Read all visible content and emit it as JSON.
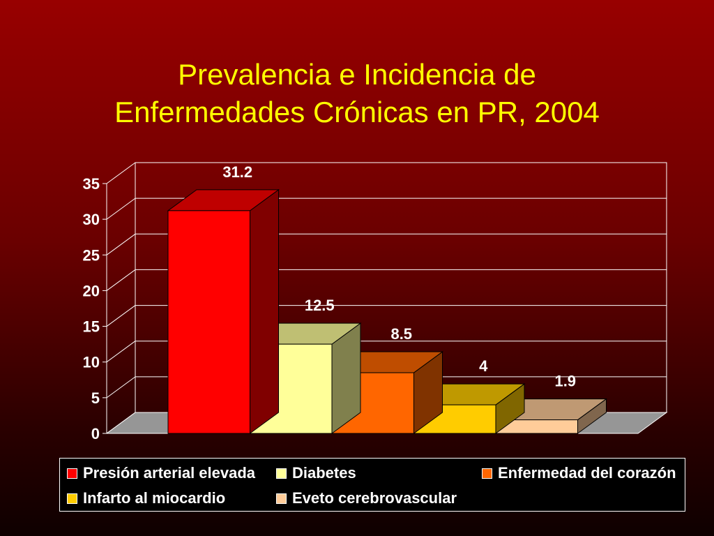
{
  "slide": {
    "title_line1": "Prevalencia e Incidencia de",
    "title_line2": "Enfermedades Crónicas en PR, 2004",
    "background_colors": [
      "#980000",
      "#0e0000"
    ],
    "title_color": "#ffff00"
  },
  "chart_data": {
    "type": "bar",
    "style": "3d-stepped",
    "title": "Prevalencia e Incidencia de Enfermedades Crónicas en PR, 2004",
    "xlabel": "",
    "ylabel": "",
    "ylim": [
      0,
      35
    ],
    "yticks": [
      "0",
      "5",
      "10",
      "15",
      "20",
      "25",
      "30",
      "35"
    ],
    "grid": true,
    "legend_position": "bottom",
    "series": [
      {
        "name": "Presión arterial elevada",
        "value": 31.2,
        "label": "31.2",
        "color": "#ff0000"
      },
      {
        "name": "Diabetes",
        "value": 12.5,
        "label": "12.5",
        "color": "#ffff99"
      },
      {
        "name": "Enfermedad del corazón",
        "value": 8.5,
        "label": "8.5",
        "color": "#ff6600"
      },
      {
        "name": "Infarto al miocardio",
        "value": 4,
        "label": "4",
        "color": "#ffcc00"
      },
      {
        "name": "Eveto cerebrovascular",
        "value": 1.9,
        "label": "1.9",
        "color": "#ffcc99"
      }
    ],
    "floor_color": "#969696",
    "gridline_color": "#ffffff"
  }
}
